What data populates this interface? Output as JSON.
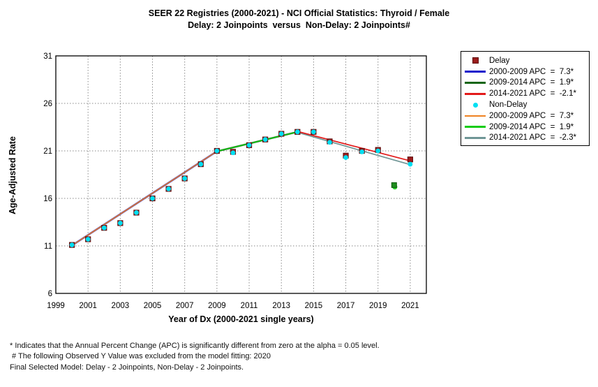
{
  "header": {
    "title": "SEER 22 Registries (2000-2021) - NCI Official Statistics: Thyroid / Female",
    "subtitle": "Delay: 2 Joinpoints  versus  Non-Delay: 2 Joinpoints#"
  },
  "chart_data": {
    "type": "line",
    "title": "SEER 22 Registries (2000-2021) - NCI Official Statistics: Thyroid / Female — Delay: 2 Joinpoints versus Non-Delay: 2 Joinpoints#",
    "xlabel": "Year of Dx (2000-2021 single years)",
    "ylabel": "Age-Adjusted Rate",
    "xlim": [
      1999,
      2022
    ],
    "ylim": [
      6,
      31
    ],
    "xticks": [
      1999,
      2001,
      2003,
      2005,
      2007,
      2009,
      2011,
      2013,
      2015,
      2017,
      2019,
      2021
    ],
    "yticks": [
      6,
      11,
      16,
      21,
      26,
      31
    ],
    "grid": "dotted; horizontal at 11,16,21,26; vertical at odd years 2001-2021",
    "x": [
      2000,
      2001,
      2002,
      2003,
      2004,
      2005,
      2006,
      2007,
      2008,
      2009,
      2010,
      2011,
      2012,
      2013,
      2014,
      2015,
      2016,
      2017,
      2018,
      2019,
      2021
    ],
    "series": [
      {
        "name": "Delay observed",
        "type": "scatter",
        "marker": "square",
        "color": "#9a1c1c",
        "values": [
          11.1,
          11.7,
          12.9,
          13.4,
          14.5,
          16.0,
          17.0,
          18.1,
          19.6,
          21.0,
          20.9,
          21.6,
          22.2,
          22.8,
          23.0,
          23.0,
          22.0,
          20.5,
          21.0,
          21.1,
          20.1
        ]
      },
      {
        "name": "Non-Delay observed",
        "type": "scatter",
        "marker": "dot",
        "color": "#00dff2",
        "values": [
          11.1,
          11.7,
          12.9,
          13.4,
          14.5,
          16.0,
          17.0,
          18.1,
          19.6,
          21.0,
          20.8,
          21.6,
          22.2,
          22.8,
          23.0,
          23.0,
          21.9,
          20.3,
          20.9,
          21.0,
          19.6
        ]
      }
    ],
    "excluded_point": {
      "x": 2020,
      "delay_value": 17.4,
      "non_delay_value": 17.2,
      "square_color": "#1f8d1f",
      "dot_color": "#2bd12b",
      "note": "Observed Y Value excluded from model fitting"
    },
    "fitted_segments": [
      {
        "series": "Delay",
        "range": "2000-2009",
        "apc": 7.3,
        "color": "#1414cc",
        "width": 2.4,
        "x1": 2000,
        "y1": 11.05,
        "x2": 2009,
        "y2": 20.95
      },
      {
        "series": "Non-Delay",
        "range": "2000-2009",
        "apc": 7.3,
        "color": "#ef8222",
        "width": 1.5,
        "x1": 2000,
        "y1": 11.05,
        "x2": 2009,
        "y2": 20.95
      },
      {
        "series": "Delay",
        "range": "2009-2014",
        "apc": 1.9,
        "color": "#156615",
        "width": 2.4,
        "x1": 2009,
        "y1": 20.95,
        "x2": 2014,
        "y2": 23.0
      },
      {
        "series": "Non-Delay",
        "range": "2009-2014",
        "apc": 1.9,
        "color": "#15cc15",
        "width": 1.5,
        "x1": 2009,
        "y1": 20.95,
        "x2": 2014,
        "y2": 23.0
      },
      {
        "series": "Non-Delay",
        "range": "2014-2021",
        "apc": -2.3,
        "color": "#6f9696",
        "width": 1.7,
        "x1": 2014,
        "y1": 22.95,
        "x2": 2021,
        "y2": 19.55
      },
      {
        "series": "Delay",
        "range": "2014-2021",
        "apc": -2.1,
        "color": "#e31a1a",
        "width": 1.7,
        "x1": 2014,
        "y1": 23.05,
        "x2": 2021,
        "y2": 19.95
      }
    ]
  },
  "legend": {
    "items": [
      {
        "label": "Delay",
        "swatch": "square",
        "color": "#9a1c1c"
      },
      {
        "label": "2000-2009 APC  =  7.3*",
        "swatch": "line",
        "color": "#1414cc"
      },
      {
        "label": "2009-2014 APC  =  1.9*",
        "swatch": "line",
        "color": "#156615"
      },
      {
        "label": "2014-2021 APC  =  -2.1*",
        "swatch": "line",
        "color": "#e31a1a"
      },
      {
        "label": "Non-Delay",
        "swatch": "dot",
        "color": "#00dff2"
      },
      {
        "label": "2000-2009 APC  =  7.3*",
        "swatch": "line",
        "color": "#ef8222"
      },
      {
        "label": "2009-2014 APC  =  1.9*",
        "swatch": "line",
        "color": "#15cc15"
      },
      {
        "label": "2014-2021 APC  =  -2.3*",
        "swatch": "line",
        "color": "#6f9696"
      }
    ]
  },
  "footnotes": {
    "line1": "* Indicates that the Annual Percent Change (APC) is significantly different from zero at the alpha = 0.05 level.",
    "line2": " # The following Observed Y Value was excluded from the model fitting: 2020",
    "line3": "Final Selected Model: Delay - 2 Joinpoints, Non-Delay - 2 Joinpoints."
  },
  "colors": {
    "background": "#ffffff",
    "plot_border": "#000000",
    "gridline": "#8a8a8a",
    "delay_marker": "#9a1c1c",
    "non_delay_marker": "#00dff2",
    "excluded_marker": "#1f8d1f"
  }
}
